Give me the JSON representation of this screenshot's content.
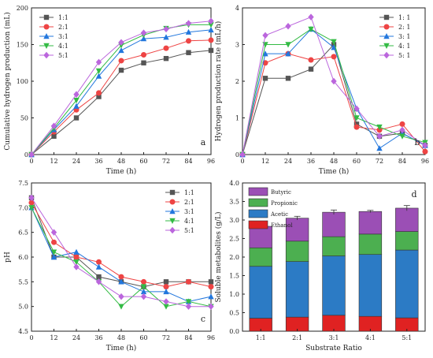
{
  "chart_data": [
    {
      "id": "a",
      "type": "line",
      "panel_label": "a",
      "xlabel": "Time (h)",
      "ylabel": "Cumulative hydrogen production (mL)",
      "x": [
        0,
        12,
        24,
        36,
        48,
        60,
        72,
        84,
        96
      ],
      "xlim": [
        0,
        96
      ],
      "ylim": [
        0,
        200
      ],
      "xticks": [
        "0",
        "12",
        "24",
        "36",
        "48",
        "60",
        "72",
        "84",
        "96"
      ],
      "yticks": [
        "0",
        "50",
        "100",
        "150",
        "200"
      ],
      "legend_position": "top-left",
      "grid": false,
      "series": [
        {
          "name": "1:1",
          "color": "#555555",
          "marker": "square",
          "values": [
            0,
            25,
            50,
            79,
            115,
            125,
            131,
            139,
            142
          ]
        },
        {
          "name": "2:1",
          "color": "#ee4444",
          "marker": "circle",
          "values": [
            0,
            31,
            61,
            84,
            128,
            136,
            145,
            155,
            156
          ]
        },
        {
          "name": "3:1",
          "color": "#2277dd",
          "marker": "triangle-up",
          "values": [
            0,
            34,
            66,
            107,
            142,
            158,
            160,
            167,
            170
          ]
        },
        {
          "name": "4:1",
          "color": "#33bb44",
          "marker": "triangle-down",
          "values": [
            0,
            36,
            74,
            114,
            149,
            163,
            172,
            177,
            177
          ]
        },
        {
          "name": "5:1",
          "color": "#bb66dd",
          "marker": "diamond",
          "values": [
            0,
            39,
            82,
            126,
            153,
            166,
            171,
            179,
            182
          ]
        }
      ]
    },
    {
      "id": "b",
      "type": "line",
      "panel_label": "b",
      "xlabel": "Time (h)",
      "ylabel": "Hydrogen production rate (mL/h)",
      "x": [
        0,
        12,
        24,
        36,
        48,
        60,
        72,
        84,
        96
      ],
      "xlim": [
        0,
        96
      ],
      "ylim": [
        0,
        4
      ],
      "xticks": [
        "0",
        "12",
        "24",
        "36",
        "48",
        "60",
        "72",
        "84",
        "96"
      ],
      "yticks": [
        "0",
        "1",
        "2",
        "3",
        "4"
      ],
      "legend_position": "top-right",
      "grid": false,
      "series": [
        {
          "name": "1: 1",
          "color": "#555555",
          "marker": "square",
          "values": [
            0,
            2.08,
            2.08,
            2.33,
            3.0,
            0.83,
            0.5,
            0.58,
            0.25
          ]
        },
        {
          "name": "2: 1",
          "color": "#ee4444",
          "marker": "circle",
          "values": [
            0,
            2.5,
            2.75,
            2.58,
            2.67,
            0.75,
            0.67,
            0.83,
            0.08
          ]
        },
        {
          "name": "3: 1",
          "color": "#2277dd",
          "marker": "triangle-up",
          "values": [
            0,
            2.75,
            2.75,
            3.42,
            2.92,
            1.25,
            0.17,
            0.58,
            0.25
          ]
        },
        {
          "name": "4: 1",
          "color": "#33bb44",
          "marker": "triangle-down",
          "values": [
            0,
            3.0,
            3.0,
            3.42,
            3.08,
            1.0,
            0.75,
            0.5,
            0.33
          ]
        },
        {
          "name": "5: 1",
          "color": "#bb66dd",
          "marker": "diamond",
          "values": [
            0,
            3.25,
            3.5,
            3.75,
            2.0,
            1.25,
            0.5,
            0.67,
            0.25
          ]
        }
      ]
    },
    {
      "id": "c",
      "type": "line",
      "panel_label": "c",
      "xlabel": "Time (h)",
      "ylabel": "pH",
      "x": [
        0,
        12,
        24,
        36,
        48,
        60,
        72,
        84,
        96
      ],
      "xlim": [
        0,
        96
      ],
      "ylim": [
        4.5,
        7.5
      ],
      "xticks": [
        "0",
        "12",
        "24",
        "36",
        "48",
        "60",
        "72",
        "84",
        "96"
      ],
      "yticks": [
        "4.5",
        "5.0",
        "5.5",
        "6.0",
        "6.5",
        "7.0",
        "7.5"
      ],
      "legend_position": "top-right",
      "grid": false,
      "series": [
        {
          "name": "1:1",
          "color": "#555555",
          "marker": "square",
          "values": [
            7.2,
            6.0,
            6.0,
            5.6,
            5.5,
            5.4,
            5.5,
            5.5,
            5.5
          ]
        },
        {
          "name": "2:1",
          "color": "#ee4444",
          "marker": "circle",
          "values": [
            7.1,
            6.3,
            6.0,
            5.9,
            5.6,
            5.5,
            5.4,
            5.5,
            5.4
          ]
        },
        {
          "name": "3:1",
          "color": "#2277dd",
          "marker": "triangle-up",
          "values": [
            7.0,
            6.0,
            6.1,
            5.8,
            5.5,
            5.3,
            5.3,
            5.1,
            5.2
          ]
        },
        {
          "name": "4:1",
          "color": "#33bb44",
          "marker": "triangle-down",
          "values": [
            7.0,
            6.1,
            5.9,
            5.5,
            5.0,
            5.4,
            5.0,
            5.1,
            5.0
          ]
        },
        {
          "name": "5:1",
          "color": "#bb66dd",
          "marker": "diamond",
          "values": [
            7.2,
            6.5,
            5.8,
            5.5,
            5.2,
            5.2,
            5.1,
            5.0,
            5.0
          ]
        }
      ]
    },
    {
      "id": "d",
      "type": "bar",
      "stacked": true,
      "panel_label": "d",
      "xlabel": "Substrate Ratio",
      "ylabel": "Soluble metabolites (g/L)",
      "categories": [
        "1:1",
        "2:1",
        "3:1",
        "4:1",
        "5:1"
      ],
      "ylim": [
        0,
        4.0
      ],
      "yticks": [
        "0.0",
        "0.5",
        "1.0",
        "1.5",
        "2.0",
        "2.5",
        "3.0",
        "3.5",
        "4.0"
      ],
      "legend_position": "top-left",
      "legend_order": [
        "Butyric",
        "Propionic",
        "Acetic",
        "Ethanol"
      ],
      "grid": false,
      "series": [
        {
          "name": "Ethanol",
          "color": "#e02222",
          "values": [
            0.35,
            0.38,
            0.43,
            0.4,
            0.36
          ]
        },
        {
          "name": "Acetic",
          "color": "#2c7bc5",
          "values": [
            1.4,
            1.5,
            1.6,
            1.67,
            1.83
          ]
        },
        {
          "name": "Propionic",
          "color": "#4caf50",
          "values": [
            0.5,
            0.55,
            0.52,
            0.55,
            0.5
          ]
        },
        {
          "name": "Butyric",
          "color": "#9b4fb5",
          "values": [
            0.58,
            0.62,
            0.66,
            0.61,
            0.63
          ]
        }
      ],
      "totals_error": [
        0.03,
        0.05,
        0.06,
        0.03,
        0.07
      ]
    }
  ]
}
